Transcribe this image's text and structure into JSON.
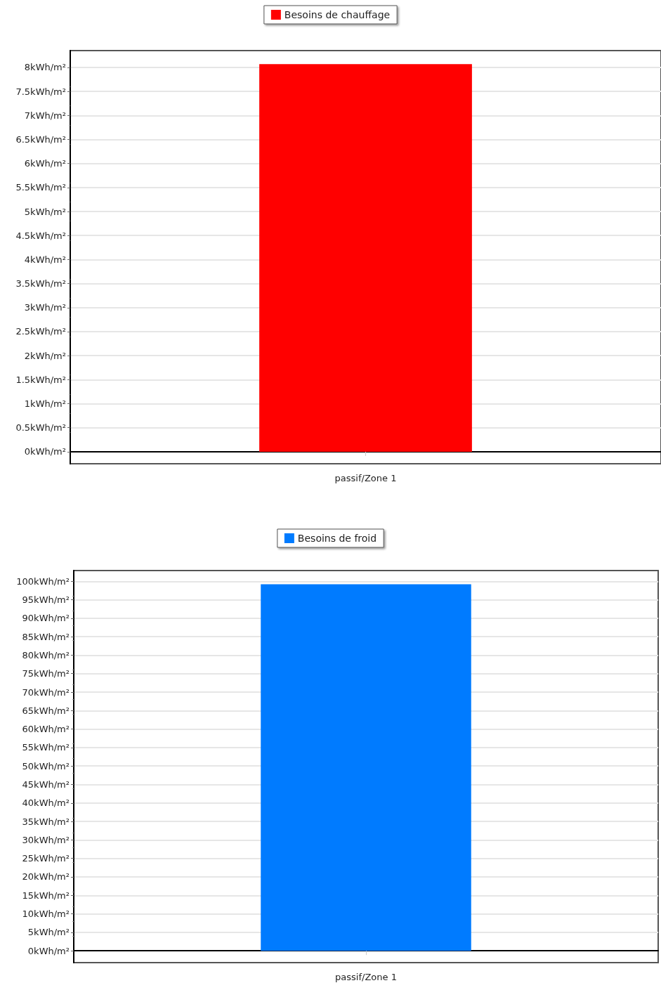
{
  "chart_data": [
    {
      "type": "bar",
      "categories": [
        "passif/Zone 1"
      ],
      "series": [
        {
          "name": "Besoins de chauffage",
          "color": "#ff0000",
          "values": [
            8.07
          ]
        }
      ],
      "ylim": [
        -0.25,
        8.35
      ],
      "yticks": [
        {
          "value": 0,
          "label": "0kWh/m²"
        },
        {
          "value": 0.5,
          "label": "0.5kWh/m²"
        },
        {
          "value": 1,
          "label": "1kWh/m²"
        },
        {
          "value": 1.5,
          "label": "1.5kWh/m²"
        },
        {
          "value": 2,
          "label": "2kWh/m²"
        },
        {
          "value": 2.5,
          "label": "2.5kWh/m²"
        },
        {
          "value": 3,
          "label": "3kWh/m²"
        },
        {
          "value": 3.5,
          "label": "3.5kWh/m²"
        },
        {
          "value": 4,
          "label": "4kWh/m²"
        },
        {
          "value": 4.5,
          "label": "4.5kWh/m²"
        },
        {
          "value": 5,
          "label": "5kWh/m²"
        },
        {
          "value": 5.5,
          "label": "5.5kWh/m²"
        },
        {
          "value": 6,
          "label": "6kWh/m²"
        },
        {
          "value": 6.5,
          "label": "6.5kWh/m²"
        },
        {
          "value": 7,
          "label": "7kWh/m²"
        },
        {
          "value": 7.5,
          "label": "7.5kWh/m²"
        },
        {
          "value": 8,
          "label": "8kWh/m²"
        }
      ],
      "grid": "y",
      "legend": "top"
    },
    {
      "type": "bar",
      "categories": [
        "passif/Zone 1"
      ],
      "series": [
        {
          "name": "Besoins de froid",
          "color": "#007bff",
          "values": [
            99.2
          ]
        }
      ],
      "ylim": [
        -3.2,
        102.9
      ],
      "yticks": [
        {
          "value": 0,
          "label": "0kWh/m²"
        },
        {
          "value": 5,
          "label": "5kWh/m²"
        },
        {
          "value": 10,
          "label": "10kWh/m²"
        },
        {
          "value": 15,
          "label": "15kWh/m²"
        },
        {
          "value": 20,
          "label": "20kWh/m²"
        },
        {
          "value": 25,
          "label": "25kWh/m²"
        },
        {
          "value": 30,
          "label": "30kWh/m²"
        },
        {
          "value": 35,
          "label": "35kWh/m²"
        },
        {
          "value": 40,
          "label": "40kWh/m²"
        },
        {
          "value": 45,
          "label": "45kWh/m²"
        },
        {
          "value": 50,
          "label": "50kWh/m²"
        },
        {
          "value": 55,
          "label": "55kWh/m²"
        },
        {
          "value": 60,
          "label": "60kWh/m²"
        },
        {
          "value": 65,
          "label": "65kWh/m²"
        },
        {
          "value": 70,
          "label": "70kWh/m²"
        },
        {
          "value": 75,
          "label": "75kWh/m²"
        },
        {
          "value": 80,
          "label": "80kWh/m²"
        },
        {
          "value": 85,
          "label": "85kWh/m²"
        },
        {
          "value": 90,
          "label": "90kWh/m²"
        },
        {
          "value": 95,
          "label": "95kWh/m²"
        },
        {
          "value": 100,
          "label": "100kWh/m²"
        }
      ],
      "grid": "y",
      "legend": "top"
    }
  ]
}
